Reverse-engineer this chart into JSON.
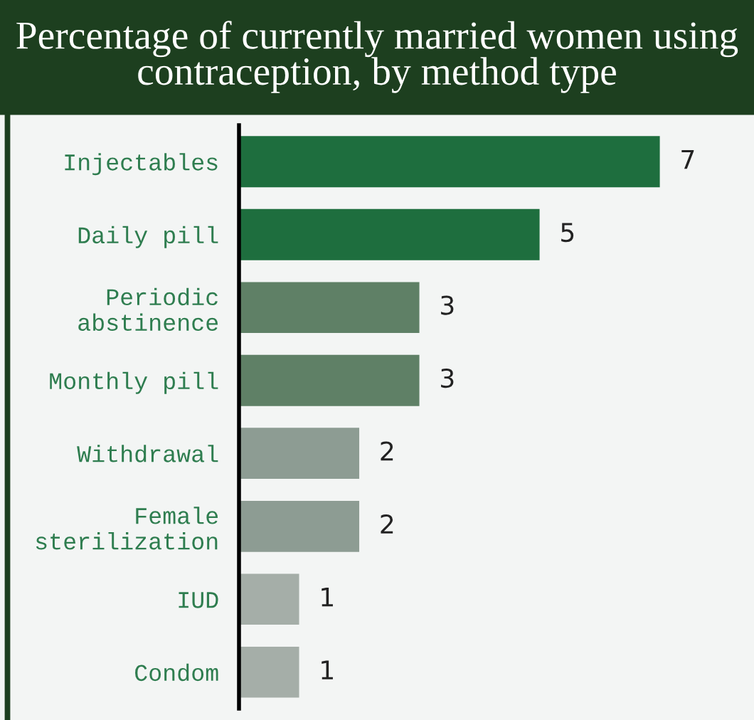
{
  "chart_data": {
    "type": "bar",
    "orientation": "horizontal",
    "title": "Percentage of currently married women using contraception, by method type",
    "categories": [
      "Injectables",
      "Daily pill",
      "Periodic abstinence",
      "Monthly pill",
      "Withdrawal",
      "Female sterilization",
      "IUD",
      "Condom"
    ],
    "values": [
      7,
      5,
      3,
      3,
      2,
      2,
      1,
      1
    ],
    "colors": [
      "#1e6e3e",
      "#1e6e3e",
      "#5f8066",
      "#5f8066",
      "#8d9c93",
      "#8d9c93",
      "#a5aea8",
      "#a5aea8"
    ],
    "data_labels": true,
    "grid": false
  }
}
